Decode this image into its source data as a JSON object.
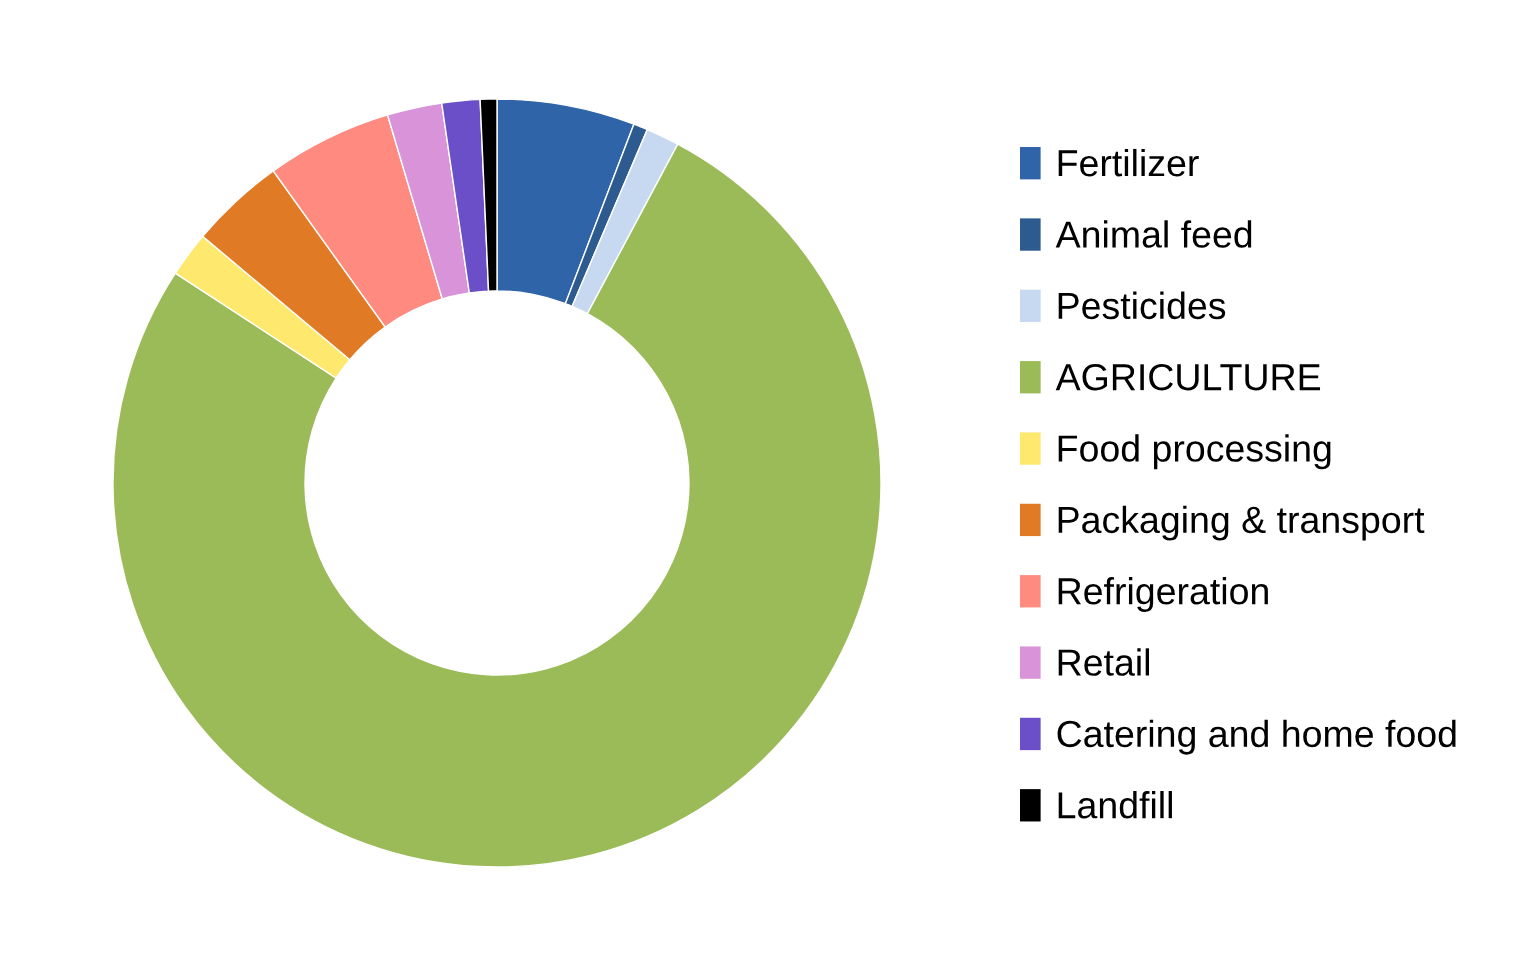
{
  "chart_data": {
    "type": "donut",
    "categories": [
      "Fertilizer",
      "Animal feed",
      "Pesticides",
      "AGRICULTURE",
      "Food processing",
      "Packaging & transport",
      "Refrigeration",
      "Retail",
      "Catering and home food",
      "Landfill"
    ],
    "values": [
      5.8,
      0.6,
      1.4,
      76.4,
      1.9,
      4.0,
      5.3,
      2.3,
      1.6,
      0.7
    ],
    "colors": [
      "#2f64a8",
      "#2e5b8f",
      "#c6d9f0",
      "#9bbb59",
      "#ffe86e",
      "#e07a25",
      "#ff8a80",
      "#d993d9",
      "#6a4fc8",
      "#000000"
    ],
    "legend": "right"
  }
}
